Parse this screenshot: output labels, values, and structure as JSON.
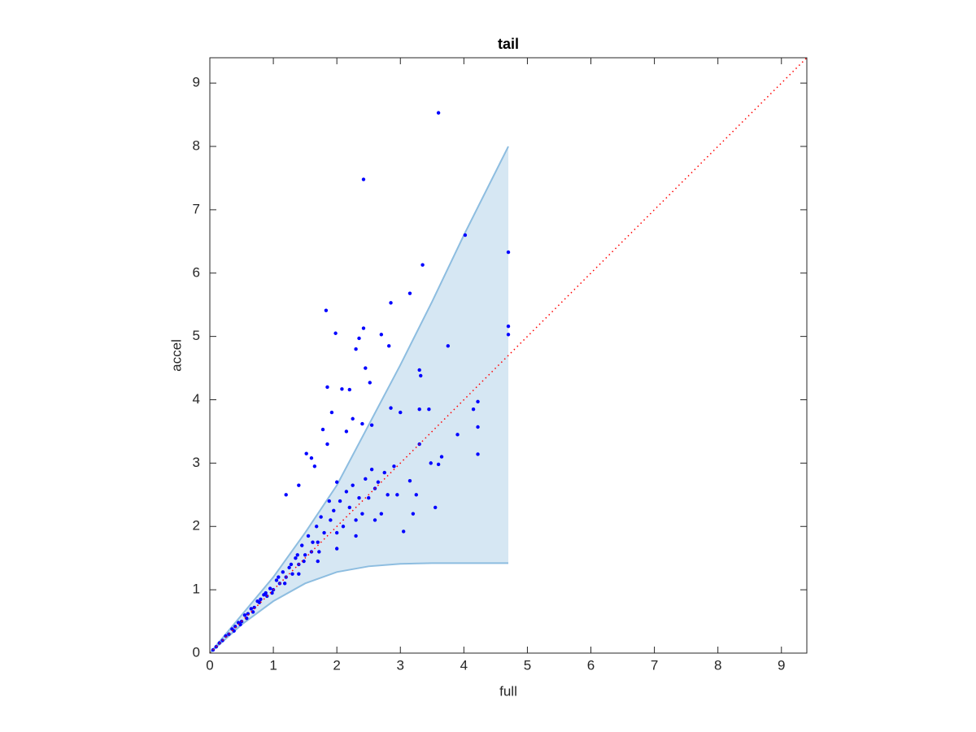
{
  "chart_data": {
    "type": "scatter",
    "title": "tail",
    "x_label": "full",
    "y_label": "accel",
    "xlim": [
      0,
      9.4
    ],
    "ylim": [
      0,
      9.4
    ],
    "xticks": [
      0,
      1,
      2,
      3,
      4,
      5,
      6,
      7,
      8,
      9
    ],
    "yticks": [
      0,
      1,
      2,
      3,
      4,
      5,
      6,
      7,
      8,
      9
    ],
    "band": {
      "color": "#d6e7f3",
      "edge_color": "#8dbde0",
      "x": [
        0,
        0.5,
        1,
        1.5,
        2,
        2.5,
        3,
        3.5,
        4,
        4.7
      ],
      "lower": [
        0,
        0.45,
        0.82,
        1.1,
        1.28,
        1.37,
        1.41,
        1.42,
        1.42,
        1.42
      ],
      "upper": [
        0,
        0.6,
        1.2,
        1.9,
        2.65,
        3.6,
        4.55,
        5.55,
        6.6,
        8.0
      ]
    },
    "reference_line": {
      "color": "#ff0000",
      "x": [
        0,
        9.4
      ],
      "y": [
        0,
        9.4
      ]
    },
    "scatter": {
      "color": "#0000ff",
      "x": [
        3.6,
        2.42,
        4.02,
        4.7,
        3.35,
        3.15,
        2.85,
        1.83,
        4.7,
        4.7,
        1.98,
        2.42,
        2.35,
        2.7,
        2.82,
        3.75,
        2.3,
        2.45,
        3.3,
        3.32,
        1.85,
        2.08,
        2.52,
        2.2,
        4.22,
        4.15,
        3.3,
        2.85,
        3.0,
        3.45,
        2.4,
        1.92,
        2.25,
        2.15,
        2.55,
        3.3,
        3.9,
        4.22,
        4.22,
        3.48,
        3.6,
        3.65,
        3.25,
        3.2,
        2.0,
        1.4,
        1.52,
        1.6,
        1.65,
        1.78,
        1.85,
        1.2,
        3.05,
        3.55,
        3.15,
        2.95,
        2.7,
        2.8,
        2.6,
        2.5,
        2.4,
        2.3,
        2.2,
        2.1,
        2.0,
        1.9,
        1.8,
        1.7,
        1.6,
        1.5,
        1.4,
        1.3,
        1.2,
        1.1,
        1.0,
        0.9,
        0.8,
        0.7,
        0.6,
        0.5,
        0.4,
        0.3,
        0.2,
        0.1,
        0.05,
        1.95,
        1.88,
        1.75,
        1.68,
        1.55,
        1.45,
        1.35,
        1.25,
        1.15,
        1.05,
        0.95,
        0.85,
        0.75,
        0.65,
        0.55,
        0.45,
        0.35,
        0.25,
        0.15,
        2.05,
        2.15,
        2.25,
        2.35,
        2.45,
        2.55,
        2.65,
        2.75,
        2.9,
        1.72,
        1.62,
        1.48,
        1.38,
        1.28,
        1.18,
        1.08,
        0.98,
        0.88,
        0.78,
        0.68,
        0.58,
        0.48,
        0.38,
        2.6,
        2.3,
        2.0,
        1.7,
        1.4
      ],
      "y": [
        8.53,
        7.48,
        6.6,
        6.33,
        6.13,
        5.68,
        5.53,
        5.41,
        5.16,
        5.03,
        5.05,
        5.13,
        4.97,
        5.03,
        4.85,
        4.85,
        4.8,
        4.5,
        4.47,
        4.38,
        4.2,
        4.17,
        4.27,
        4.16,
        3.97,
        3.85,
        3.85,
        3.87,
        3.8,
        3.85,
        3.62,
        3.8,
        3.7,
        3.5,
        3.6,
        3.3,
        3.45,
        3.57,
        3.14,
        3.0,
        2.98,
        3.1,
        2.5,
        2.2,
        2.7,
        2.65,
        3.15,
        3.08,
        2.95,
        3.53,
        3.3,
        2.5,
        1.92,
        2.3,
        2.72,
        2.5,
        2.2,
        2.5,
        2.6,
        2.45,
        2.2,
        2.1,
        2.3,
        2.0,
        1.9,
        2.1,
        1.9,
        1.75,
        1.6,
        1.55,
        1.4,
        1.25,
        1.2,
        1.1,
        1.0,
        0.9,
        0.85,
        0.72,
        0.62,
        0.5,
        0.42,
        0.3,
        0.2,
        0.1,
        0.05,
        2.25,
        2.4,
        2.15,
        2.0,
        1.85,
        1.7,
        1.5,
        1.35,
        1.28,
        1.15,
        1.02,
        0.92,
        0.82,
        0.7,
        0.6,
        0.48,
        0.38,
        0.27,
        0.16,
        2.4,
        2.55,
        2.65,
        2.45,
        2.75,
        2.9,
        2.7,
        2.85,
        2.95,
        1.6,
        1.75,
        1.45,
        1.55,
        1.4,
        1.1,
        1.2,
        0.95,
        0.95,
        0.8,
        0.65,
        0.55,
        0.45,
        0.35,
        2.1,
        1.85,
        1.65,
        1.45,
        1.25
      ]
    }
  }
}
